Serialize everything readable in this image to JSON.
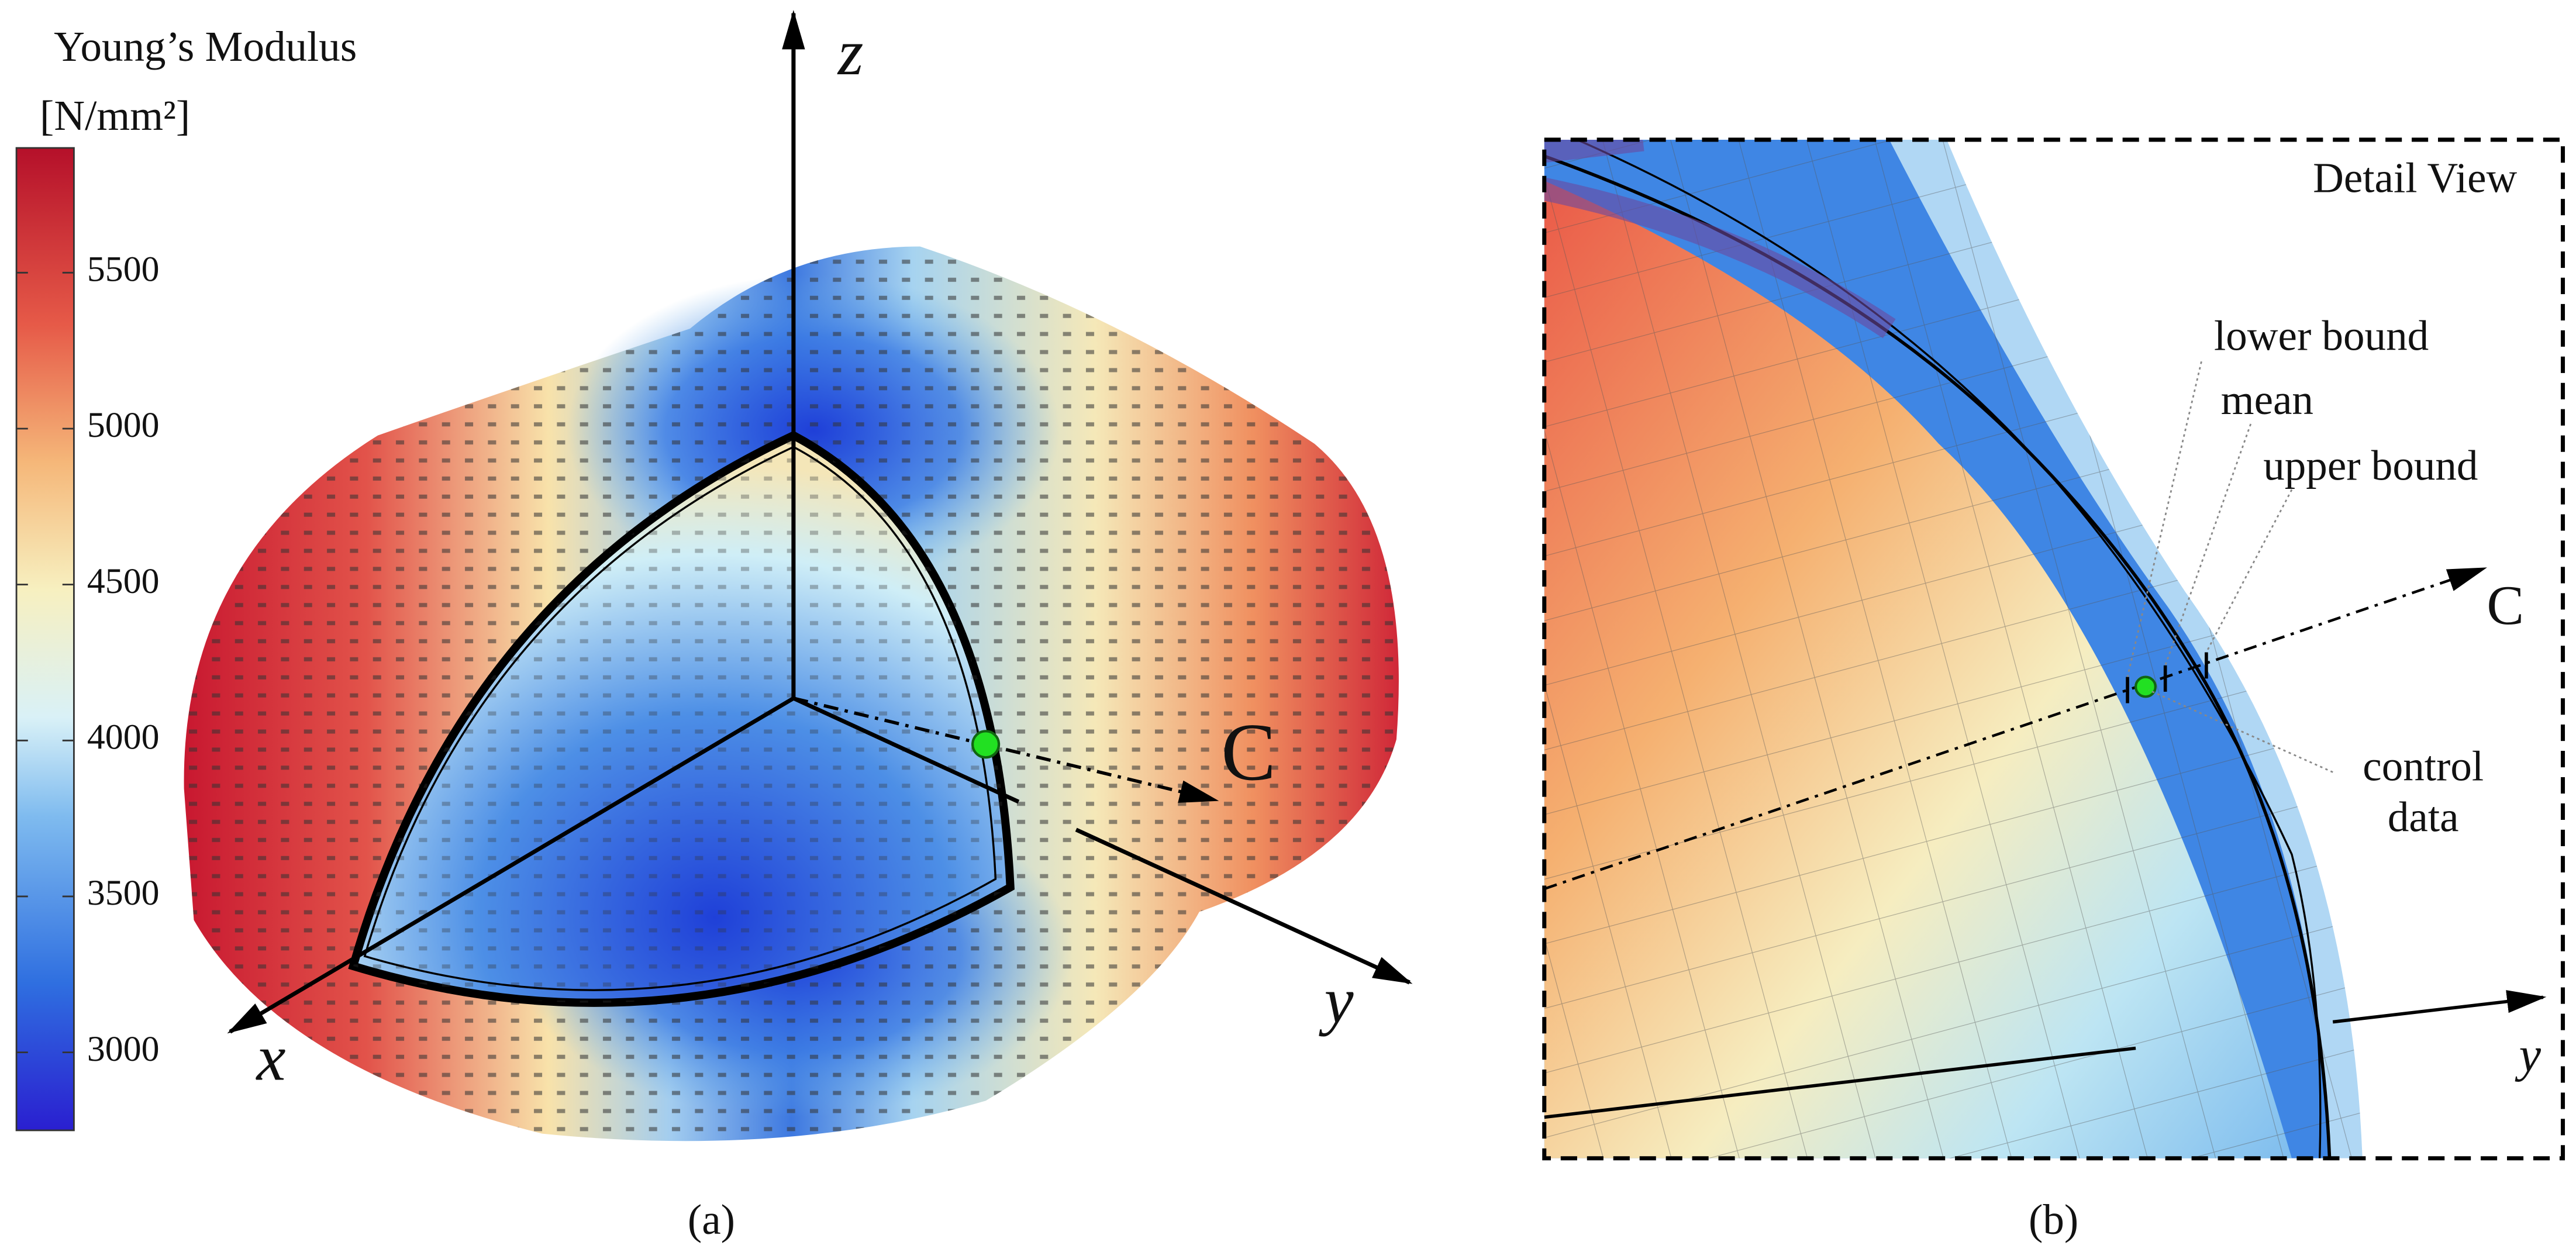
{
  "panel_a": {
    "colorbar": {
      "title": "Young’s Modulus",
      "unit": "[N/mm²]",
      "lim": [
        2750,
        5900
      ],
      "ticks": [
        3000,
        3500,
        4000,
        4500,
        5000,
        5500
      ]
    },
    "axis_labels": {
      "x": "x",
      "y": "y",
      "z": "z"
    },
    "direction_label": "C",
    "caption": "(a)"
  },
  "panel_b": {
    "title": "Detail View",
    "lower_bound": "lower bound",
    "mean": "mean",
    "upper_bound": "upper bound",
    "control_data": [
      "control",
      "data"
    ],
    "direction_label": "C",
    "axis_label": "y",
    "caption": "(b)"
  }
}
